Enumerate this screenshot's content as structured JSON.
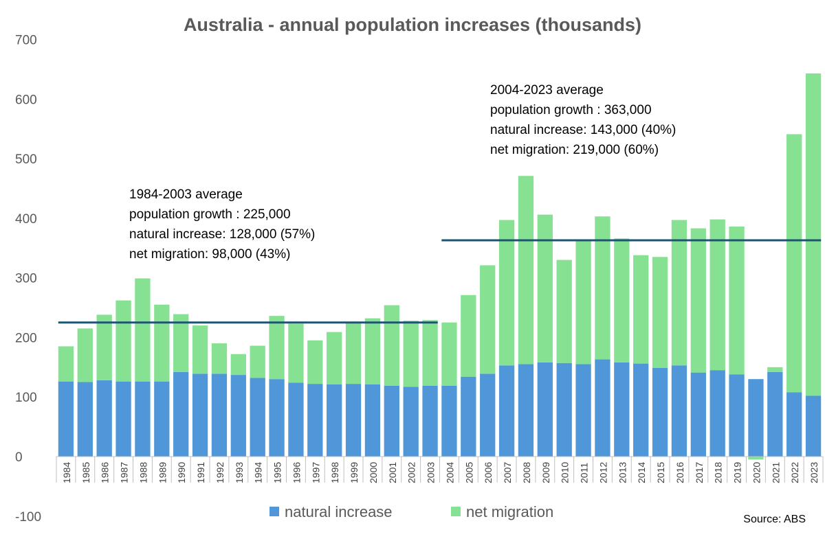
{
  "chart_data": {
    "type": "bar",
    "stacked": true,
    "title": "Australia - annual population increases (thousands)",
    "xlabel": "",
    "ylabel": "",
    "ylim": [
      -100,
      700
    ],
    "yticks": [
      -100,
      0,
      100,
      200,
      300,
      400,
      500,
      600,
      700
    ],
    "categories": [
      "1984",
      "1985",
      "1986",
      "1987",
      "1988",
      "1989",
      "1990",
      "1991",
      "1992",
      "1993",
      "1994",
      "1995",
      "1996",
      "1997",
      "1998",
      "1999",
      "2000",
      "2001",
      "2002",
      "2003",
      "2004",
      "2005",
      "2006",
      "2007",
      "2008",
      "2009",
      "2010",
      "2011",
      "2012",
      "2013",
      "2014",
      "2015",
      "2016",
      "2017",
      "2018",
      "2019",
      "2020",
      "2021",
      "2022",
      "2023"
    ],
    "series": [
      {
        "name": "natural increase",
        "color": "#4f97d9",
        "values": [
          126,
          125,
          128,
          126,
          126,
          126,
          142,
          139,
          139,
          137,
          132,
          130,
          124,
          122,
          121,
          122,
          121,
          119,
          117,
          119,
          119,
          134,
          139,
          153,
          155,
          158,
          157,
          155,
          163,
          158,
          156,
          149,
          153,
          141,
          145,
          138,
          130,
          142,
          108,
          102
        ]
      },
      {
        "name": "net migration",
        "color": "#87e192",
        "values": [
          59,
          90,
          110,
          136,
          173,
          129,
          97,
          81,
          51,
          35,
          54,
          106,
          99,
          73,
          88,
          102,
          111,
          135,
          111,
          110,
          106,
          137,
          182,
          244,
          316,
          248,
          173,
          208,
          240,
          208,
          182,
          186,
          244,
          242,
          253,
          248,
          -5,
          8,
          433,
          541
        ]
      }
    ],
    "reference_lines": [
      {
        "from": "1984",
        "to": "2003",
        "value": 225,
        "color": "#1d5571"
      },
      {
        "from": "2004",
        "to": "2023",
        "value": 363,
        "color": "#1d5571"
      }
    ],
    "annotations": [
      {
        "lines": [
          "1984-2003 average",
          "population growth : 225,000",
          "natural increase: 128,000 (57%)",
          "net migration: 98,000 (43%)"
        ]
      },
      {
        "lines": [
          "2004-2023 average",
          "population growth : 363,000",
          "natural increase: 143,000 (40%)",
          "net migration: 219,000 (60%)"
        ]
      }
    ],
    "legend": {
      "position": "bottom"
    },
    "source": "Source: ABS"
  }
}
